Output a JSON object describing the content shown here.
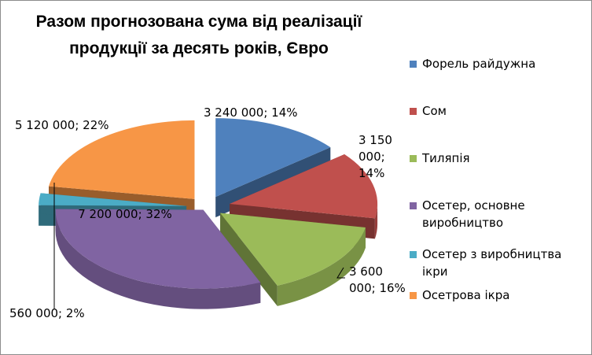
{
  "chart_data": {
    "type": "pie",
    "title_lines": [
      "Разом прогнозована сума від реалізації",
      "продукції за десять років, Євро"
    ],
    "series": [
      {
        "name": "Форель райдужна",
        "value": 3240000,
        "percent": 14,
        "label": "3 240 000; 14%",
        "color": "#4f81bd"
      },
      {
        "name": "Сом",
        "value": 3150000,
        "percent": 14,
        "label_lines": [
          "3 150",
          "000;",
          "14%"
        ],
        "color": "#c0504d"
      },
      {
        "name": "Тиляпія",
        "value": 3600000,
        "percent": 16,
        "label_lines": [
          "3 600",
          "000; 16%"
        ],
        "color": "#9bbb59"
      },
      {
        "name": "Осетер, основне виробництво",
        "legend_lines": [
          "Осетер, основне",
          "виробництво"
        ],
        "value": 7200000,
        "percent": 32,
        "label": "7 200 000; 32%",
        "color": "#8064a2"
      },
      {
        "name": "Осетер з виробництва ікри",
        "legend_lines": [
          "Осетер з виробництва",
          "ікри"
        ],
        "value": 560000,
        "percent": 2,
        "label": "560 000; 2%",
        "color": "#4bacc6"
      },
      {
        "name": "Осетрова ікра",
        "value": 5120000,
        "percent": 22,
        "label": "5 120 000; 22%",
        "color": "#f79646"
      }
    ],
    "legend_position": "right",
    "style": "3d-exploded"
  }
}
